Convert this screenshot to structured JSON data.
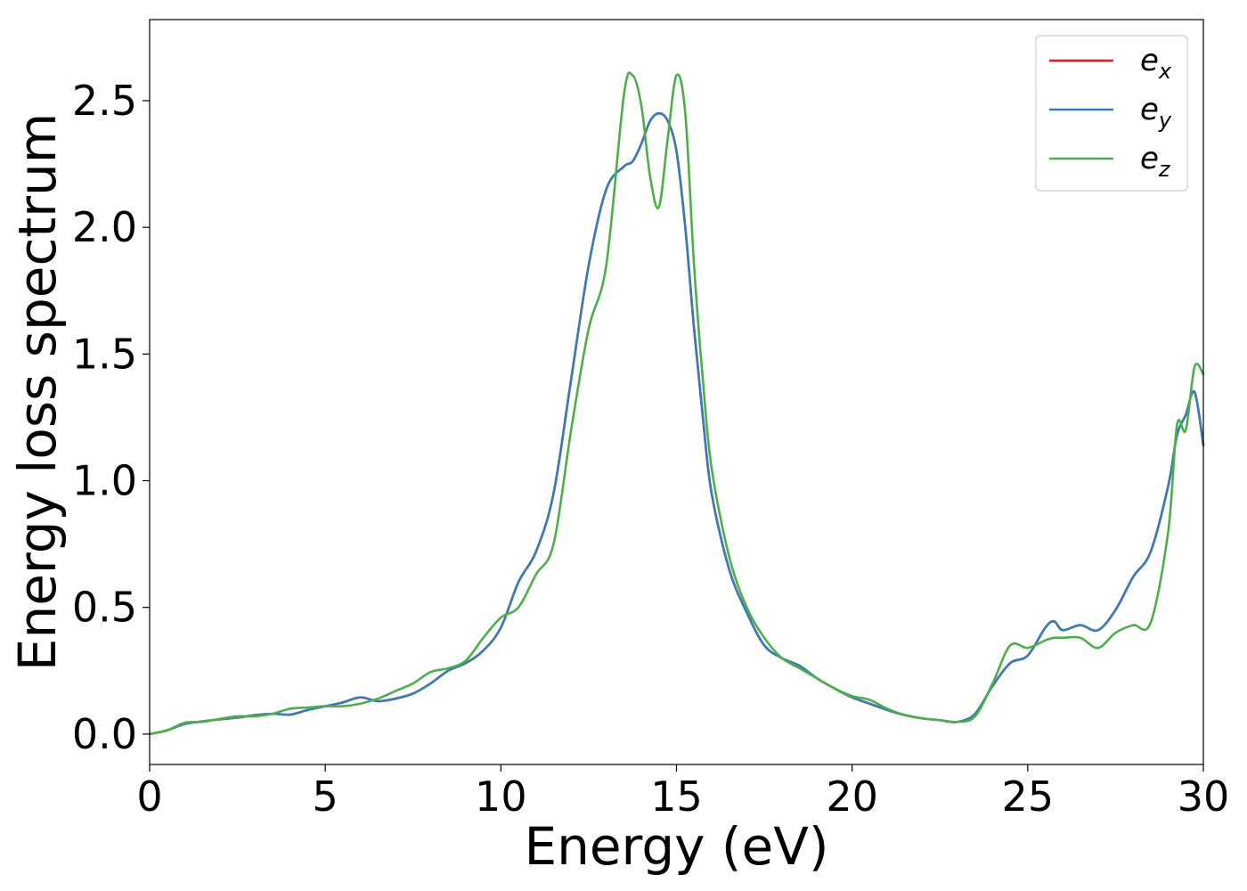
{
  "chart_data": {
    "type": "line",
    "xlabel": "Energy (eV)",
    "ylabel": "Energy loss spectrum",
    "xlim": [
      0,
      30
    ],
    "ylim": [
      -0.12,
      2.82
    ],
    "x_ticks": [
      "0",
      "5",
      "10",
      "15",
      "20",
      "25",
      "30"
    ],
    "y_ticks": [
      "0.0",
      "0.5",
      "1.0",
      "1.5",
      "2.0",
      "2.5"
    ],
    "grid": false,
    "legend_position": "top-right",
    "x": [
      0,
      0.5,
      1.0,
      1.5,
      2.0,
      2.5,
      3.0,
      3.5,
      4.0,
      4.5,
      5.0,
      5.5,
      6.0,
      6.5,
      7.0,
      7.5,
      8.0,
      8.5,
      9.0,
      9.5,
      10.0,
      10.5,
      11.0,
      11.5,
      12.0,
      12.5,
      13.0,
      13.5,
      13.75,
      14.0,
      14.25,
      14.5,
      14.75,
      15.0,
      15.25,
      15.5,
      15.75,
      16.0,
      16.5,
      17.0,
      17.5,
      18.0,
      18.5,
      19.0,
      19.5,
      20.0,
      20.5,
      21.0,
      21.5,
      22.0,
      22.5,
      23.0,
      23.5,
      24.0,
      24.5,
      25.0,
      25.5,
      25.75,
      26.0,
      26.5,
      27.0,
      27.5,
      28.0,
      28.5,
      29.0,
      29.25,
      29.5,
      29.75,
      30.0
    ],
    "series": [
      {
        "name": "e_x",
        "label_base": "e",
        "label_sub": "x",
        "color": "#e41a1c",
        "values": [
          0.0,
          0.015,
          0.04,
          0.05,
          0.058,
          0.065,
          0.075,
          0.08,
          0.077,
          0.095,
          0.11,
          0.125,
          0.145,
          0.13,
          0.14,
          0.16,
          0.2,
          0.25,
          0.28,
          0.33,
          0.42,
          0.6,
          0.72,
          0.95,
          1.4,
          1.85,
          2.15,
          2.24,
          2.26,
          2.33,
          2.42,
          2.45,
          2.42,
          2.3,
          2.0,
          1.6,
          1.25,
          0.95,
          0.65,
          0.48,
          0.35,
          0.3,
          0.27,
          0.22,
          0.18,
          0.145,
          0.12,
          0.095,
          0.075,
          0.062,
          0.055,
          0.048,
          0.08,
          0.19,
          0.28,
          0.31,
          0.42,
          0.445,
          0.41,
          0.43,
          0.41,
          0.49,
          0.62,
          0.72,
          0.98,
          1.18,
          1.26,
          1.35,
          1.14
        ]
      },
      {
        "name": "e_y",
        "label_base": "e",
        "label_sub": "y",
        "color": "#377eb8",
        "values": [
          0.0,
          0.015,
          0.04,
          0.05,
          0.058,
          0.065,
          0.075,
          0.08,
          0.077,
          0.095,
          0.11,
          0.125,
          0.145,
          0.13,
          0.14,
          0.16,
          0.2,
          0.25,
          0.28,
          0.33,
          0.42,
          0.6,
          0.72,
          0.95,
          1.4,
          1.85,
          2.15,
          2.24,
          2.26,
          2.33,
          2.42,
          2.45,
          2.42,
          2.3,
          2.0,
          1.6,
          1.25,
          0.95,
          0.65,
          0.48,
          0.35,
          0.3,
          0.27,
          0.22,
          0.18,
          0.145,
          0.12,
          0.095,
          0.075,
          0.062,
          0.055,
          0.048,
          0.08,
          0.19,
          0.28,
          0.31,
          0.42,
          0.445,
          0.41,
          0.43,
          0.41,
          0.49,
          0.62,
          0.72,
          0.98,
          1.18,
          1.26,
          1.35,
          1.14
        ]
      },
      {
        "name": "e_z",
        "label_base": "e",
        "label_sub": "z",
        "color": "#4daf4a",
        "values": [
          0.0,
          0.015,
          0.045,
          0.048,
          0.06,
          0.07,
          0.07,
          0.08,
          0.1,
          0.105,
          0.11,
          0.11,
          0.12,
          0.14,
          0.17,
          0.2,
          0.245,
          0.26,
          0.29,
          0.38,
          0.46,
          0.5,
          0.63,
          0.75,
          1.2,
          1.6,
          1.85,
          2.52,
          2.6,
          2.48,
          2.2,
          2.08,
          2.35,
          2.6,
          2.45,
          1.85,
          1.4,
          1.05,
          0.7,
          0.5,
          0.38,
          0.3,
          0.26,
          0.22,
          0.18,
          0.15,
          0.135,
          0.1,
          0.075,
          0.062,
          0.055,
          0.048,
          0.07,
          0.2,
          0.35,
          0.34,
          0.37,
          0.38,
          0.38,
          0.38,
          0.34,
          0.4,
          0.43,
          0.44,
          0.8,
          1.22,
          1.2,
          1.45,
          1.42
        ]
      }
    ]
  }
}
